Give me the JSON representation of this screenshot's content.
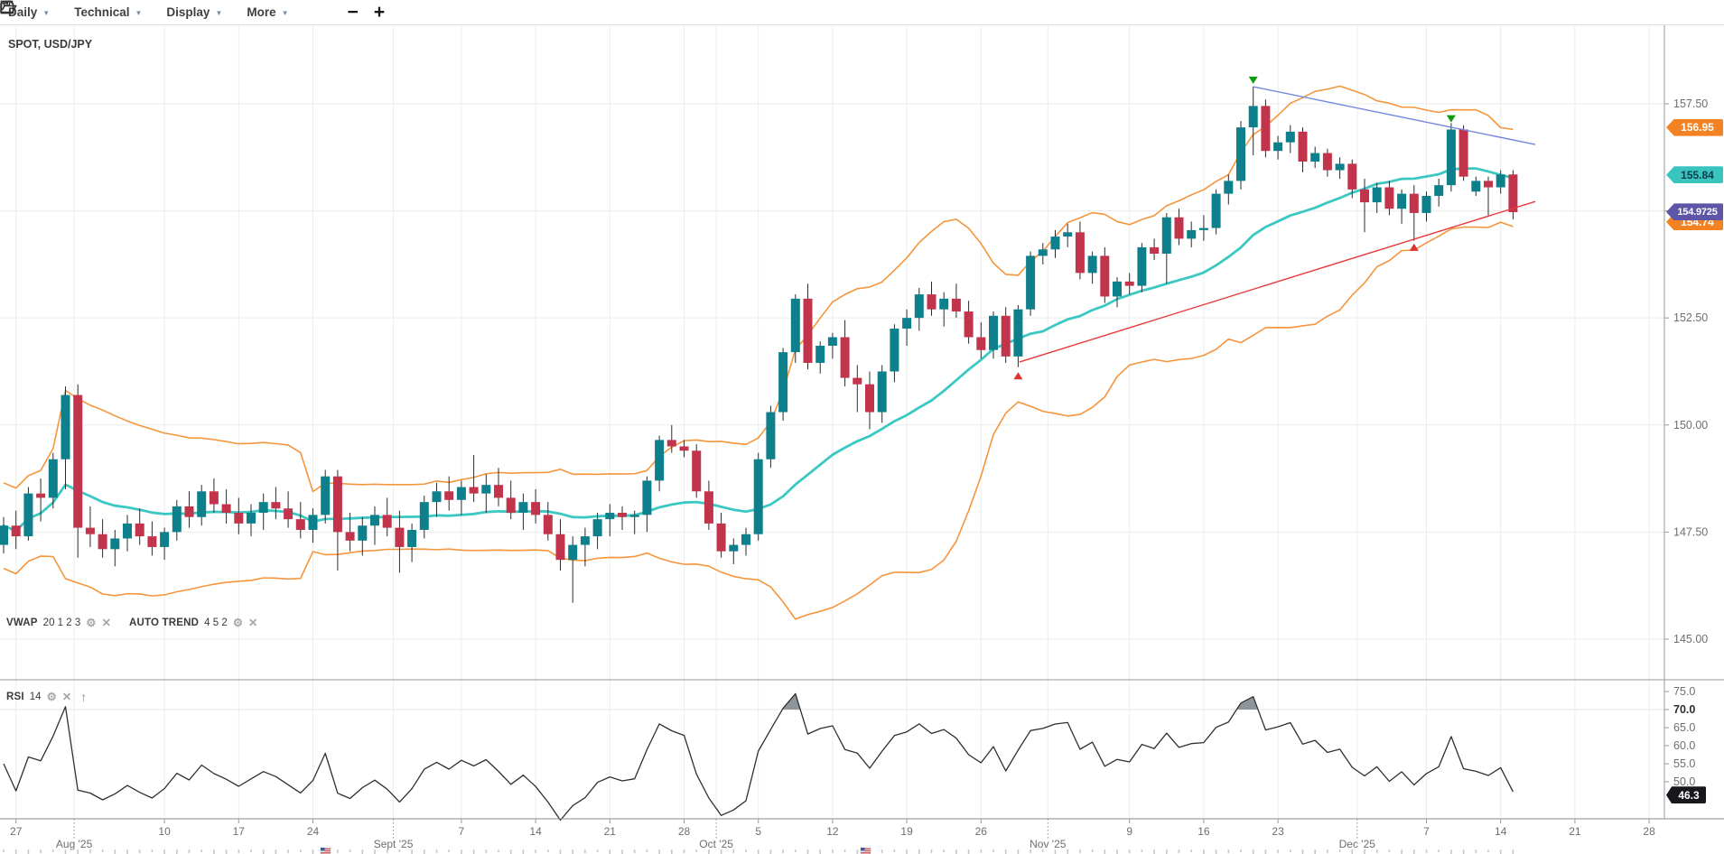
{
  "toolbar": {
    "menus": [
      {
        "label": "Daily"
      },
      {
        "label": "Technical"
      },
      {
        "label": "Display"
      },
      {
        "label": "More"
      }
    ],
    "icons": [
      "open-folder",
      "save",
      "zoom-out",
      "zoom-in"
    ]
  },
  "symbol_label": "SPOT, USD/JPY",
  "overlays": {
    "vwap": {
      "name": "VWAP",
      "params": "20 1 2 3"
    },
    "auto_trend": {
      "name": "AUTO TREND",
      "params": "4 5 2"
    },
    "rsi": {
      "name": "RSI",
      "params": "14"
    }
  },
  "price_axis": {
    "tick_labels": [
      "157.50",
      "155.00",
      "152.50",
      "150.00",
      "147.50",
      "145.00"
    ],
    "tick_values": [
      157.5,
      155.0,
      152.5,
      150.0,
      147.5,
      145.0
    ],
    "badges": [
      {
        "label": "156.95",
        "value": 156.95,
        "color": "#F28222",
        "text_color": "#ffffff",
        "role": "bollinger-upper"
      },
      {
        "label": "155.84",
        "value": 155.84,
        "color": "#3AC4BF",
        "text_color": "#0C3D49",
        "role": "vwap-line"
      },
      {
        "label": "154.9725",
        "value": 154.9725,
        "color": "#5D55A7",
        "text_color": "#ffffff",
        "role": "last-price"
      },
      {
        "label": "154.74",
        "value": 154.74,
        "color": "#F28222",
        "text_color": "#ffffff",
        "role": "bollinger-lower"
      }
    ]
  },
  "rsi_axis": {
    "tick_labels": [
      "75.0",
      "70.0",
      "65.0",
      "60.0",
      "55.0",
      "50.0"
    ],
    "tick_values": [
      75,
      70,
      65,
      60,
      55,
      50
    ],
    "emphasized_tick": "70.0",
    "badge": {
      "label": "46.3",
      "value": 46.3,
      "color": "#17181C",
      "text_color": "#ffffff"
    }
  },
  "time_axis": {
    "week_ticks": [
      {
        "i": 1,
        "label": "27"
      },
      {
        "i": 13,
        "label": "10"
      },
      {
        "i": 19,
        "label": "17"
      },
      {
        "i": 25,
        "label": "24"
      },
      {
        "i": 37,
        "label": "7"
      },
      {
        "i": 43,
        "label": "14"
      },
      {
        "i": 49,
        "label": "21"
      },
      {
        "i": 55,
        "label": "28"
      },
      {
        "i": 61,
        "label": "5"
      },
      {
        "i": 67,
        "label": "12"
      },
      {
        "i": 73,
        "label": "19"
      },
      {
        "i": 79,
        "label": "26"
      },
      {
        "i": 91,
        "label": "9"
      },
      {
        "i": 97,
        "label": "16"
      },
      {
        "i": 103,
        "label": "23"
      },
      {
        "i": 115,
        "label": "7"
      },
      {
        "i": 121,
        "label": "14"
      },
      {
        "i": 127,
        "label": "21"
      },
      {
        "i": 133,
        "label": "28"
      }
    ],
    "month_ticks": [
      {
        "i": 5.7,
        "label": "Aug '25"
      },
      {
        "i": 31.5,
        "label": "Sept '25"
      },
      {
        "i": 57.6,
        "label": "Oct '25"
      },
      {
        "i": 84.4,
        "label": "Nov '25"
      },
      {
        "i": 109.4,
        "label": "Dec '25"
      }
    ]
  },
  "chart_data": {
    "type": "candlestick",
    "symbol": "USD/JPY",
    "interval": "Daily",
    "ylim": [
      144.05,
      159.4
    ],
    "rsi_ylim": [
      39.75,
      78.25
    ],
    "ohlc": [
      [
        147.2,
        147.85,
        147.0,
        147.65
      ],
      [
        147.65,
        148.0,
        147.1,
        147.4
      ],
      [
        147.4,
        148.55,
        147.3,
        148.4
      ],
      [
        148.4,
        148.75,
        147.75,
        148.3
      ],
      [
        148.3,
        149.35,
        148.05,
        149.2
      ],
      [
        149.2,
        150.9,
        148.5,
        150.7
      ],
      [
        150.7,
        150.95,
        146.9,
        147.6
      ],
      [
        147.6,
        148.1,
        147.15,
        147.45
      ],
      [
        147.45,
        147.8,
        146.9,
        147.1
      ],
      [
        147.1,
        147.55,
        146.7,
        147.35
      ],
      [
        147.35,
        147.9,
        147.05,
        147.7
      ],
      [
        147.7,
        148.05,
        147.2,
        147.4
      ],
      [
        147.4,
        147.75,
        146.95,
        147.15
      ],
      [
        147.15,
        147.6,
        146.85,
        147.5
      ],
      [
        147.5,
        148.25,
        147.3,
        148.1
      ],
      [
        148.1,
        148.45,
        147.6,
        147.85
      ],
      [
        147.85,
        148.6,
        147.65,
        148.45
      ],
      [
        148.45,
        148.75,
        147.95,
        148.15
      ],
      [
        148.15,
        148.5,
        147.7,
        147.95
      ],
      [
        147.95,
        148.3,
        147.45,
        147.7
      ],
      [
        147.7,
        148.15,
        147.4,
        147.95
      ],
      [
        147.95,
        148.4,
        147.55,
        148.2
      ],
      [
        148.2,
        148.55,
        147.8,
        148.05
      ],
      [
        148.05,
        148.45,
        147.6,
        147.8
      ],
      [
        147.8,
        148.2,
        147.35,
        147.55
      ],
      [
        147.55,
        148.05,
        147.25,
        147.9
      ],
      [
        147.9,
        148.95,
        147.7,
        148.8
      ],
      [
        148.8,
        148.95,
        146.6,
        147.5
      ],
      [
        147.5,
        147.95,
        147.05,
        147.3
      ],
      [
        147.3,
        147.85,
        146.95,
        147.65
      ],
      [
        147.65,
        148.1,
        147.2,
        147.9
      ],
      [
        147.9,
        148.3,
        147.4,
        147.6
      ],
      [
        147.6,
        148.0,
        146.55,
        147.15
      ],
      [
        147.15,
        147.7,
        146.8,
        147.55
      ],
      [
        147.55,
        148.35,
        147.35,
        148.2
      ],
      [
        148.2,
        148.65,
        147.85,
        148.45
      ],
      [
        148.45,
        148.8,
        148.0,
        148.25
      ],
      [
        148.25,
        148.7,
        147.9,
        148.55
      ],
      [
        148.55,
        149.3,
        148.2,
        148.4
      ],
      [
        148.4,
        148.85,
        147.95,
        148.6
      ],
      [
        148.6,
        149.0,
        148.1,
        148.3
      ],
      [
        148.3,
        148.7,
        147.8,
        147.95
      ],
      [
        147.95,
        148.4,
        147.55,
        148.2
      ],
      [
        148.2,
        148.5,
        147.7,
        147.9
      ],
      [
        147.9,
        148.2,
        147.3,
        147.45
      ],
      [
        147.45,
        147.8,
        146.6,
        146.85
      ],
      [
        146.85,
        147.4,
        145.85,
        147.2
      ],
      [
        147.2,
        147.6,
        146.7,
        147.4
      ],
      [
        147.4,
        147.95,
        147.1,
        147.8
      ],
      [
        147.8,
        148.15,
        147.4,
        147.95
      ],
      [
        147.95,
        148.1,
        147.55,
        147.85
      ],
      [
        147.85,
        148.0,
        147.45,
        147.9
      ],
      [
        147.9,
        148.8,
        147.5,
        148.7
      ],
      [
        148.7,
        149.75,
        148.45,
        149.65
      ],
      [
        149.65,
        150.0,
        149.35,
        149.5
      ],
      [
        149.5,
        149.65,
        149.25,
        149.4
      ],
      [
        149.4,
        149.55,
        148.3,
        148.45
      ],
      [
        148.45,
        148.7,
        147.55,
        147.7
      ],
      [
        147.7,
        147.95,
        146.9,
        147.05
      ],
      [
        147.05,
        147.35,
        146.75,
        147.2
      ],
      [
        147.2,
        147.6,
        146.95,
        147.45
      ],
      [
        147.45,
        149.35,
        147.3,
        149.2
      ],
      [
        149.2,
        150.45,
        149.0,
        150.3
      ],
      [
        150.3,
        151.8,
        150.1,
        151.7
      ],
      [
        151.7,
        153.05,
        151.45,
        152.95
      ],
      [
        152.95,
        153.3,
        151.3,
        151.45
      ],
      [
        151.45,
        151.95,
        151.2,
        151.85
      ],
      [
        151.85,
        152.15,
        151.55,
        152.05
      ],
      [
        152.05,
        152.45,
        150.9,
        151.1
      ],
      [
        151.1,
        151.4,
        150.3,
        150.95
      ],
      [
        150.95,
        151.25,
        149.9,
        150.3
      ],
      [
        150.3,
        151.4,
        150.05,
        151.25
      ],
      [
        151.25,
        152.35,
        151.0,
        152.25
      ],
      [
        152.25,
        152.7,
        151.85,
        152.5
      ],
      [
        152.5,
        153.2,
        152.2,
        153.05
      ],
      [
        153.05,
        153.35,
        152.55,
        152.7
      ],
      [
        152.7,
        153.1,
        152.3,
        152.95
      ],
      [
        152.95,
        153.3,
        152.5,
        152.65
      ],
      [
        152.65,
        152.9,
        151.9,
        152.05
      ],
      [
        152.05,
        152.4,
        151.55,
        151.75
      ],
      [
        151.75,
        152.65,
        151.55,
        152.55
      ],
      [
        152.55,
        152.75,
        151.45,
        151.6
      ],
      [
        151.6,
        152.8,
        151.35,
        152.7
      ],
      [
        152.7,
        154.05,
        152.55,
        153.95
      ],
      [
        153.95,
        154.25,
        153.75,
        154.1
      ],
      [
        154.1,
        154.55,
        153.9,
        154.4
      ],
      [
        154.4,
        154.7,
        154.15,
        154.5
      ],
      [
        154.5,
        154.75,
        153.4,
        153.55
      ],
      [
        153.55,
        154.05,
        153.3,
        153.95
      ],
      [
        153.95,
        154.15,
        152.85,
        153.0
      ],
      [
        153.0,
        153.45,
        152.75,
        153.35
      ],
      [
        153.35,
        153.55,
        153.05,
        153.25
      ],
      [
        153.25,
        154.25,
        153.1,
        154.15
      ],
      [
        154.15,
        154.35,
        153.85,
        154.0
      ],
      [
        154.0,
        154.95,
        153.3,
        154.85
      ],
      [
        154.85,
        155.05,
        154.2,
        154.35
      ],
      [
        154.35,
        154.75,
        154.15,
        154.55
      ],
      [
        154.55,
        154.9,
        154.3,
        154.6
      ],
      [
        154.6,
        155.5,
        154.45,
        155.4
      ],
      [
        155.4,
        155.85,
        155.15,
        155.7
      ],
      [
        155.7,
        157.1,
        155.5,
        156.95
      ],
      [
        156.95,
        157.9,
        156.3,
        157.45
      ],
      [
        157.45,
        157.6,
        156.25,
        156.4
      ],
      [
        156.4,
        156.75,
        156.2,
        156.6
      ],
      [
        156.6,
        157.0,
        156.35,
        156.85
      ],
      [
        156.85,
        156.95,
        155.9,
        156.15
      ],
      [
        156.15,
        156.5,
        156.0,
        156.35
      ],
      [
        156.35,
        156.45,
        155.8,
        155.95
      ],
      [
        155.95,
        156.25,
        155.75,
        156.1
      ],
      [
        156.1,
        156.2,
        155.3,
        155.5
      ],
      [
        155.5,
        155.75,
        154.5,
        155.2
      ],
      [
        155.2,
        155.65,
        154.95,
        155.55
      ],
      [
        155.55,
        155.7,
        154.9,
        155.05
      ],
      [
        155.05,
        155.5,
        154.7,
        155.4
      ],
      [
        155.4,
        155.6,
        154.3,
        154.95
      ],
      [
        154.95,
        155.45,
        154.75,
        155.35
      ],
      [
        155.35,
        155.75,
        155.1,
        155.6
      ],
      [
        155.6,
        157.05,
        155.45,
        156.9
      ],
      [
        156.9,
        157.0,
        155.7,
        155.8
      ],
      [
        155.45,
        155.8,
        155.35,
        155.7
      ],
      [
        155.7,
        155.8,
        154.9,
        155.55
      ],
      [
        155.55,
        155.95,
        155.4,
        155.85
      ],
      [
        155.85,
        155.95,
        154.8,
        154.97
      ]
    ],
    "indicators": {
      "bollinger": {
        "period": 20,
        "stdev": 2,
        "upper_last": 156.95,
        "lower_last": 154.74,
        "color": "#F5953C"
      },
      "vwap_ma": {
        "period": 20,
        "last": 155.84,
        "color": "#3BC8C3"
      },
      "rsi": {
        "period": 14,
        "overbought": 70,
        "last": 46.3,
        "color": "#2F2F2F",
        "fill_color": "#8F969B"
      }
    },
    "trendlines": [
      {
        "name": "descending-resistance",
        "color": "#7286DD",
        "i1": 101,
        "p1": 157.9,
        "i2": 123.8,
        "p2": 156.55
      },
      {
        "name": "ascending-support",
        "color": "#E8393C",
        "i1": 82.1,
        "p1": 151.47,
        "i2": 123.8,
        "p2": 155.22
      }
    ],
    "markers": [
      {
        "i": 101,
        "price": 158.05,
        "type": "sell",
        "color": "#0F9B0F"
      },
      {
        "i": 117,
        "price": 157.15,
        "type": "sell",
        "color": "#0F9B0F"
      },
      {
        "i": 82,
        "price": 151.15,
        "type": "buy",
        "color": "#E03232"
      },
      {
        "i": 114,
        "price": 154.15,
        "type": "buy",
        "color": "#E03232"
      }
    ],
    "candle_colors": {
      "up": "#0E808C",
      "down": "#C2344B",
      "wick": "#2B2B2B"
    },
    "grid_color": "#EBEBEB"
  }
}
